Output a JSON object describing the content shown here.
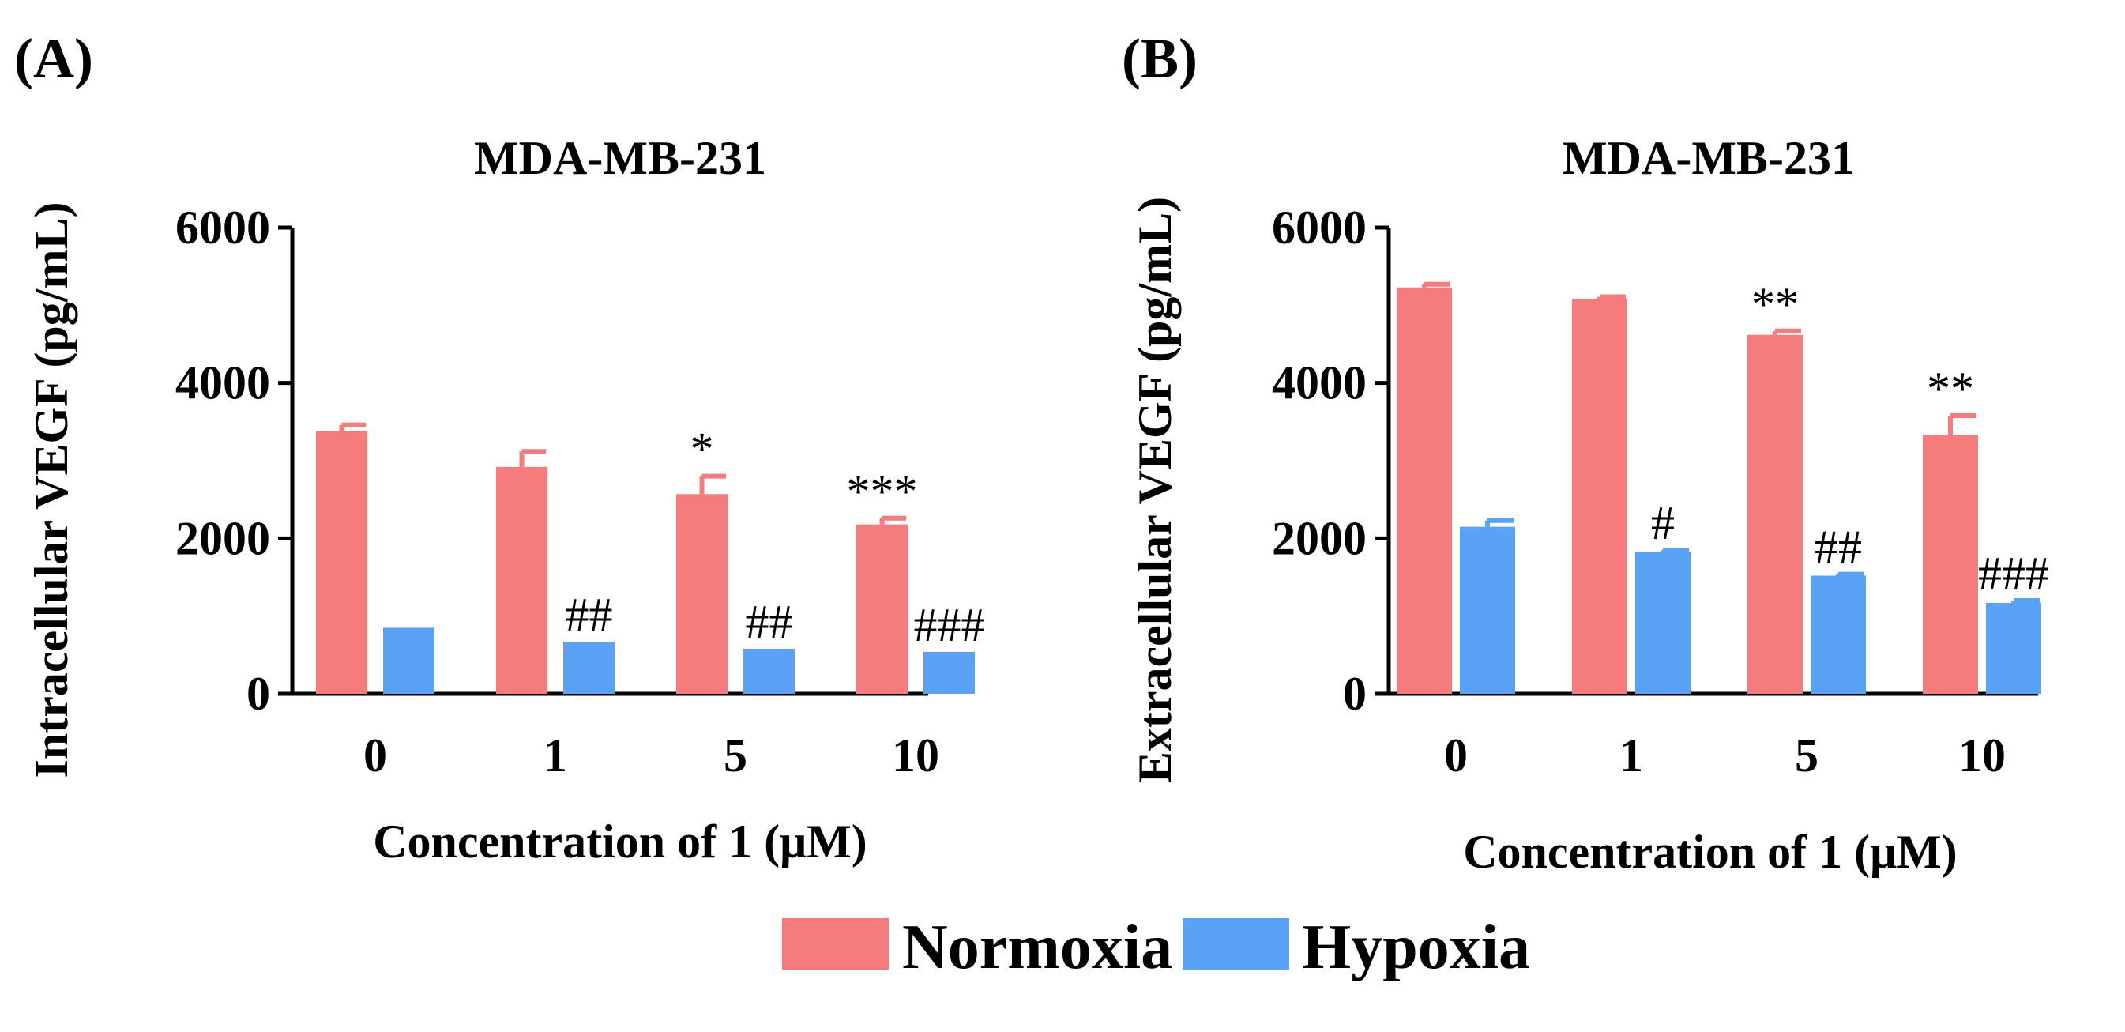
{
  "series_colors": {
    "Normoxia": "#F47C7C",
    "Hypoxia": "#5AA2F5"
  },
  "legend": [
    "Normoxia",
    "Hypoxia"
  ],
  "chart_data": [
    {
      "panel": "(A)",
      "type": "bar",
      "title": "MDA-MB-231",
      "xlabel": "Concentration of 1 (μM)",
      "ylabel": "Intracellular VEGF (pg/mL)",
      "ylim": [
        0,
        6000
      ],
      "yticks": [
        0,
        2000,
        4000,
        6000
      ],
      "categories": [
        "0",
        "1",
        "5",
        "10"
      ],
      "series": [
        {
          "name": "Normoxia",
          "values": [
            3380,
            2920,
            2570,
            2180
          ],
          "errors": [
            80,
            200,
            230,
            80
          ],
          "sig": [
            "",
            "",
            "*",
            "***"
          ]
        },
        {
          "name": "Hypoxia",
          "values": [
            850,
            670,
            580,
            540
          ],
          "errors": [
            0,
            0,
            0,
            0
          ],
          "sig": [
            "",
            "##",
            "##",
            "###"
          ]
        }
      ]
    },
    {
      "panel": "(B)",
      "type": "bar",
      "title": "MDA-MB-231",
      "xlabel": "Concentration of 1 (μM)",
      "ylabel": "Extracellular VEGF (pg/mL)",
      "ylim": [
        0,
        6000
      ],
      "yticks": [
        0,
        2000,
        4000,
        6000
      ],
      "categories": [
        "0",
        "1",
        "5",
        "10"
      ],
      "series": [
        {
          "name": "Normoxia",
          "values": [
            5230,
            5080,
            4620,
            3330
          ],
          "errors": [
            40,
            30,
            50,
            250
          ],
          "sig": [
            "",
            "",
            "**",
            "**"
          ]
        },
        {
          "name": "Hypoxia",
          "values": [
            2150,
            1830,
            1520,
            1170
          ],
          "errors": [
            80,
            20,
            20,
            30
          ],
          "sig": [
            "",
            "#",
            "##",
            "###"
          ]
        }
      ]
    }
  ]
}
